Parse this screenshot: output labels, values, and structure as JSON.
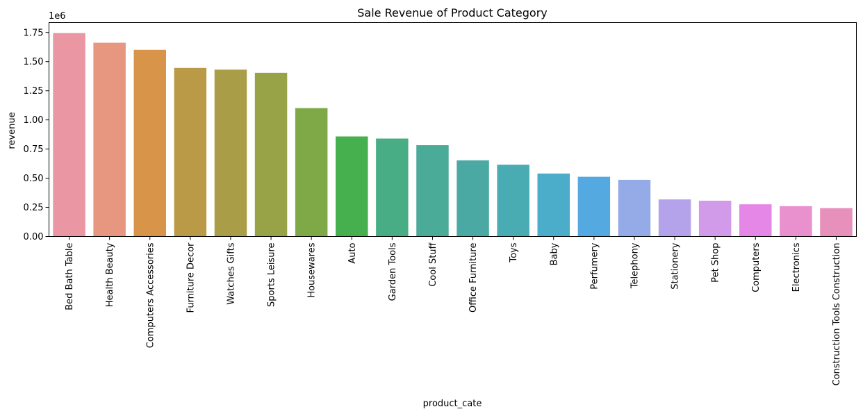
{
  "chart_data": {
    "type": "bar",
    "title": "Sale Revenue of Product Category",
    "xlabel": "product_cate",
    "ylabel": "revenue",
    "y_offset_label": "1e6",
    "ylim": [
      0,
      1750000
    ],
    "yticks": [
      0,
      250000,
      500000,
      750000,
      1000000,
      1250000,
      1500000,
      1750000
    ],
    "ytick_labels": [
      "0.00",
      "0.25",
      "0.50",
      "0.75",
      "1.00",
      "1.25",
      "1.50",
      "1.75"
    ],
    "grid": false,
    "categories": [
      "Bed Bath Table",
      "Health Beauty",
      "Computers Accessories",
      "Furniture Decor",
      "Watches Gifts",
      "Sports Leisure",
      "Housewares",
      "Auto",
      "Garden Tools",
      "Cool Stuff",
      "Office Furniture",
      "Toys",
      "Baby",
      "Perfumery",
      "Telephony",
      "Stationery",
      "Pet Shop",
      "Computers",
      "Electronics",
      "Construction Tools Construction"
    ],
    "values": [
      1745000,
      1662000,
      1601000,
      1446000,
      1431000,
      1404000,
      1101000,
      858000,
      840000,
      783000,
      653000,
      616000,
      540000,
      512000,
      486000,
      318000,
      307000,
      276000,
      260000,
      243000
    ],
    "colors": [
      "#ea96a3",
      "#e7977f",
      "#d89448",
      "#bb9a47",
      "#a99d47",
      "#98a247",
      "#7ea946",
      "#46b04f",
      "#48ad85",
      "#4aab99",
      "#4aa9a3",
      "#4aacb3",
      "#4badc9",
      "#53a9e0",
      "#94abe8",
      "#b4a2ea",
      "#d19be9",
      "#e587e6",
      "#e990cf",
      "#e890bc"
    ]
  }
}
